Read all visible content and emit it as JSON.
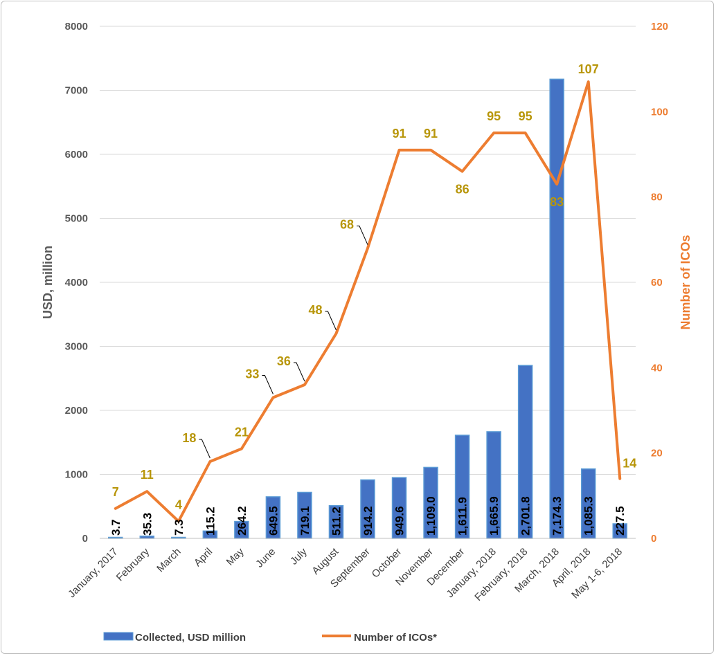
{
  "chart_data": {
    "type": "bar",
    "categories": [
      "January, 2017",
      "February",
      "March",
      "April",
      "May",
      "June",
      "July",
      "August",
      "September",
      "October",
      "November",
      "December",
      "January, 2018",
      "February, 2018",
      "March, 2018",
      "April, 2018",
      "May 1-6, 2018"
    ],
    "series": [
      {
        "name": "Collected, USD million",
        "type": "bar",
        "axis": "left",
        "color": "#4472c4",
        "values": [
          3.7,
          35.3,
          7.3,
          115.2,
          264.2,
          649.5,
          719.1,
          511.2,
          914.2,
          949.6,
          1109.0,
          1611.9,
          1665.9,
          2701.8,
          7174.3,
          1085.3,
          227.5
        ],
        "labels": [
          "3.7",
          "35.3",
          "7.3",
          "115.2",
          "264.2",
          "649.5",
          "719.1",
          "511.2",
          "914.2",
          "949.6",
          "1,109.0",
          "1,611.9",
          "1,665.9",
          "2,701.8",
          "7,174.3",
          "1,085.3",
          "227.5"
        ]
      },
      {
        "name": "Number of ICOs*",
        "type": "line",
        "axis": "right",
        "color": "#ed7d31",
        "values": [
          7,
          11,
          4,
          18,
          21,
          33,
          36,
          48,
          68,
          91,
          91,
          86,
          95,
          95,
          83,
          107,
          14
        ]
      }
    ],
    "ylabel": "USD, million",
    "y2label": "Number of ICOs",
    "ylim": [
      0,
      8000
    ],
    "y2lim": [
      0,
      120
    ],
    "yticks": [
      "0",
      "1000",
      "2000",
      "3000",
      "4000",
      "5000",
      "6000",
      "7000",
      "8000"
    ],
    "y2ticks": [
      "0",
      "20",
      "40",
      "60",
      "80",
      "100",
      "120"
    ],
    "grid": true,
    "legend": "bottom",
    "label_color": "#b8960a"
  }
}
